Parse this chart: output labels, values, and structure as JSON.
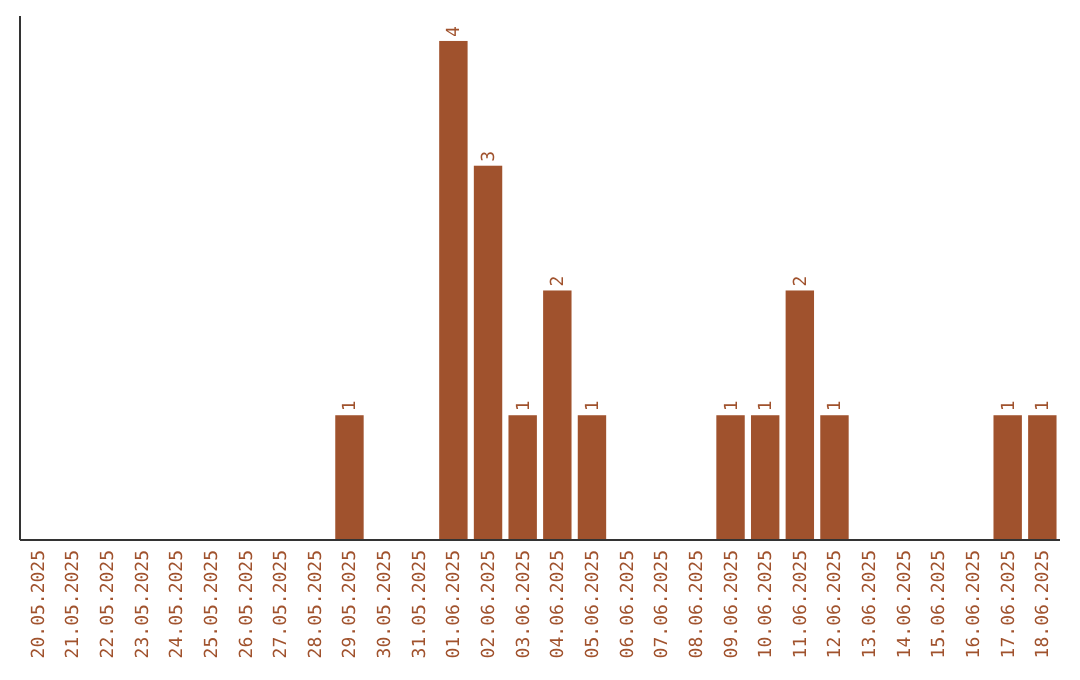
{
  "chart_data": {
    "type": "bar",
    "categories": [
      "20.05.2025",
      "21.05.2025",
      "22.05.2025",
      "23.05.2025",
      "24.05.2025",
      "25.05.2025",
      "26.05.2025",
      "27.05.2025",
      "28.05.2025",
      "29.05.2025",
      "30.05.2025",
      "31.05.2025",
      "01.06.2025",
      "02.06.2025",
      "03.06.2025",
      "04.06.2025",
      "05.06.2025",
      "06.06.2025",
      "07.06.2025",
      "08.06.2025",
      "09.06.2025",
      "10.06.2025",
      "11.06.2025",
      "12.06.2025",
      "13.06.2025",
      "14.06.2025",
      "15.06.2025",
      "16.06.2025",
      "17.06.2025",
      "18.06.2025"
    ],
    "values": [
      0,
      0,
      0,
      0,
      0,
      0,
      0,
      0,
      0,
      1,
      0,
      0,
      4,
      3,
      1,
      2,
      1,
      0,
      0,
      0,
      1,
      1,
      2,
      1,
      0,
      0,
      0,
      0,
      1,
      1
    ],
    "value_labels": [
      null,
      null,
      null,
      null,
      null,
      null,
      null,
      null,
      null,
      "1",
      null,
      null,
      "4",
      "3",
      "1",
      "2",
      "1",
      null,
      null,
      null,
      "1",
      "1",
      "2",
      "1",
      null,
      null,
      null,
      null,
      "1",
      "1"
    ],
    "color": "#a0522d",
    "ylim": [
      0,
      4.2
    ],
    "tick_labels": "x"
  }
}
